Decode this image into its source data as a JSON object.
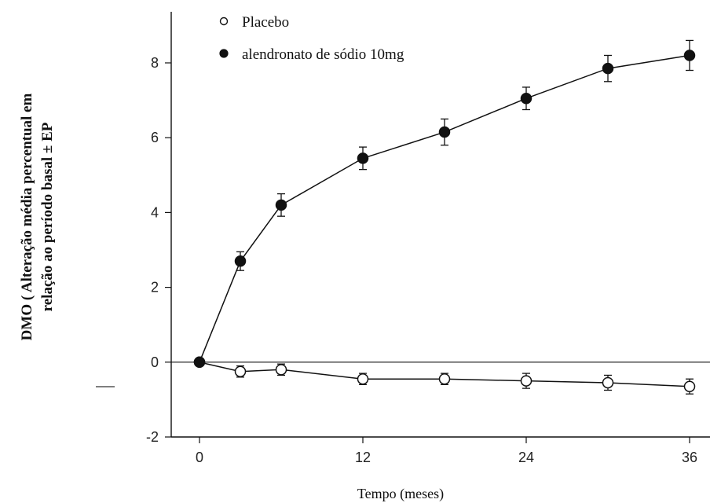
{
  "chart_data": {
    "type": "line",
    "xlabel": "Tempo (meses)",
    "ylabel_lines": [
      "DMO ( Alteração média percentual em",
      "relação ao período basal ± EP"
    ],
    "xlim": [
      0,
      36
    ],
    "ylim": [
      -2,
      9
    ],
    "xticks": [
      0,
      12,
      24,
      36
    ],
    "yticks": [
      -2,
      0,
      2,
      4,
      6,
      8
    ],
    "zero_line": true,
    "legend_position": "top-left",
    "series": [
      {
        "name": "Placebo",
        "marker": "open-circle",
        "color": "#111111",
        "x": [
          0,
          3,
          6,
          12,
          18,
          24,
          30,
          36
        ],
        "y": [
          0,
          -0.25,
          -0.2,
          -0.45,
          -0.45,
          -0.5,
          -0.55,
          -0.65
        ],
        "err": [
          0,
          0.15,
          0.15,
          0.15,
          0.15,
          0.2,
          0.2,
          0.2
        ]
      },
      {
        "name": "alendronato de sódio 10mg",
        "marker": "filled-circle",
        "color": "#111111",
        "x": [
          0,
          3,
          6,
          12,
          18,
          24,
          30,
          36
        ],
        "y": [
          0,
          2.7,
          4.2,
          5.45,
          6.15,
          7.05,
          7.85,
          8.2
        ],
        "err": [
          0,
          0.25,
          0.3,
          0.3,
          0.35,
          0.3,
          0.35,
          0.4
        ]
      }
    ]
  }
}
